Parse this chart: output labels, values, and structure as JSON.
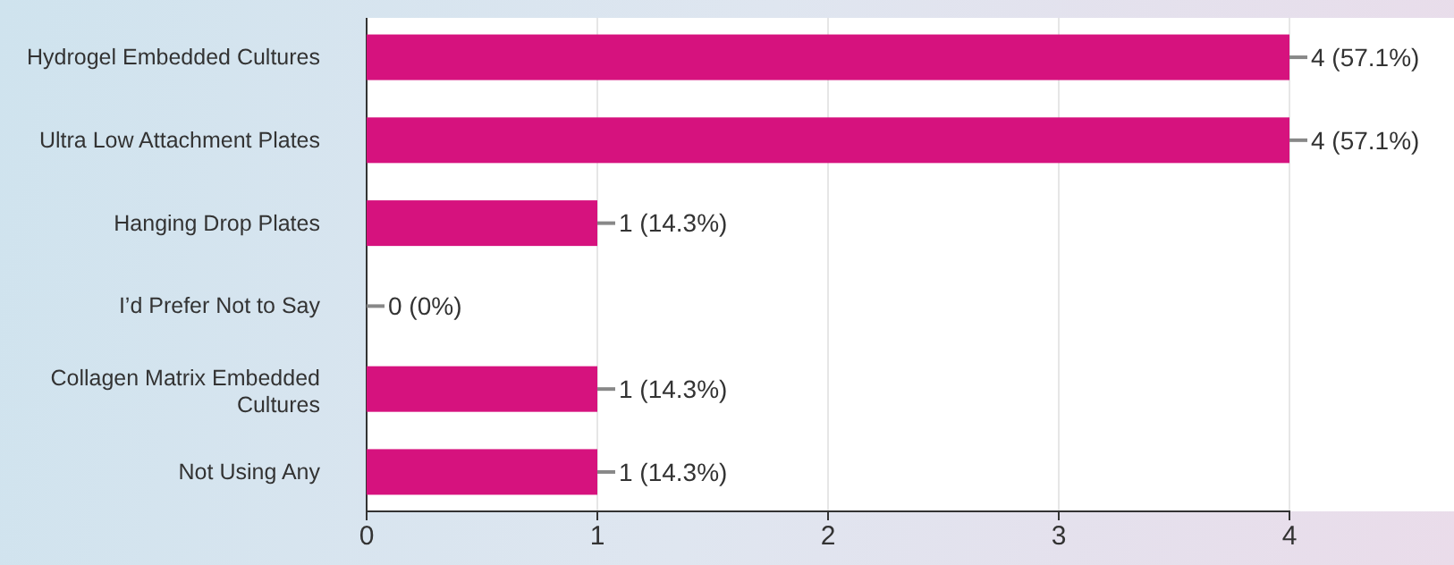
{
  "chart_data": {
    "type": "bar",
    "orientation": "horizontal",
    "categories": [
      "Hydrogel Embedded Cultures",
      "Ultra Low Attachment Plates",
      "Hanging Drop Plates",
      "I’d Prefer Not to Say",
      "Collagen Matrix Embedded Cultures",
      "Not Using Any"
    ],
    "values": [
      4,
      4,
      1,
      0,
      1,
      1
    ],
    "value_labels": [
      "4 (57.1%)",
      "4 (57.1%)",
      "1 (14.3%)",
      "0 (0%)",
      "1 (14.3%)",
      "1 (14.3%)"
    ],
    "color": "#d6127e",
    "xlim": [
      0,
      4
    ],
    "xticks": [
      0,
      1,
      2,
      3,
      4
    ],
    "grid": "x"
  }
}
